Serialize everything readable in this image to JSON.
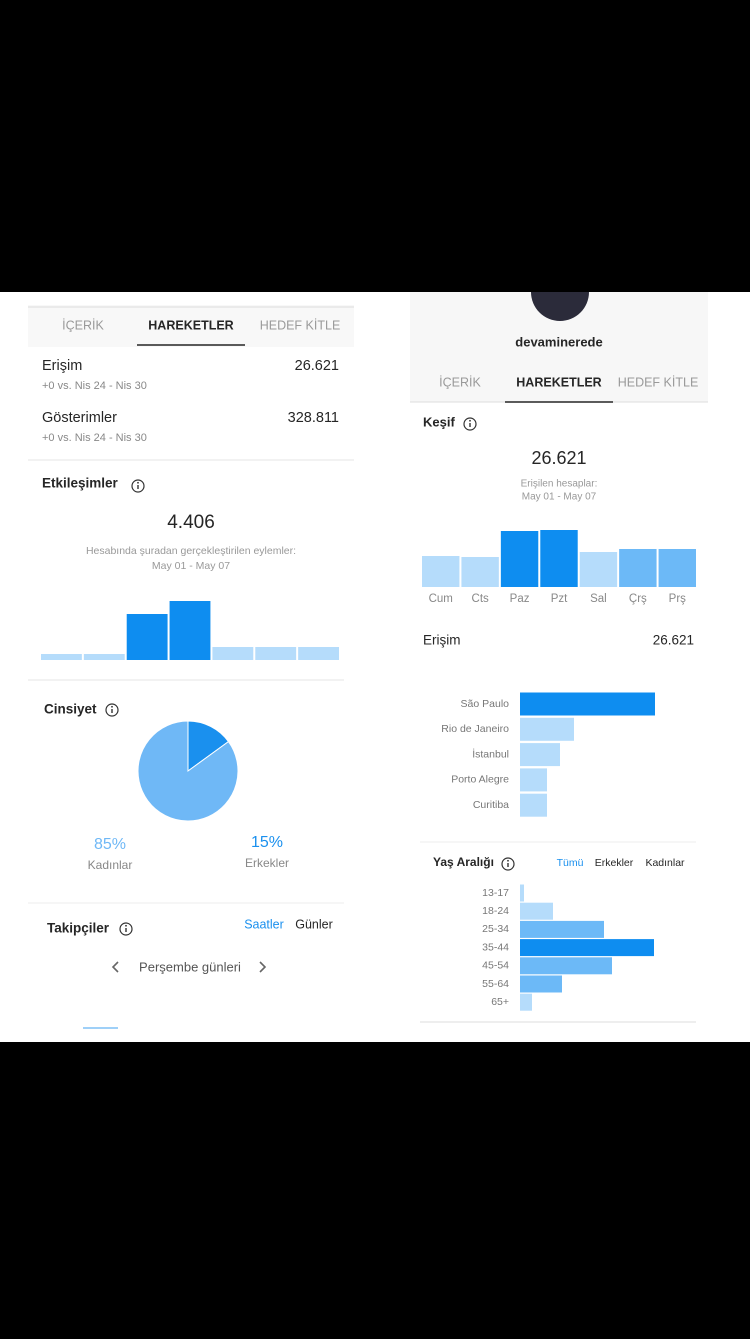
{
  "left": {
    "tabs": [
      "İÇERİK",
      "HAREKETLER",
      "HEDEF KİTLE"
    ],
    "active_tab": 1,
    "metrics": [
      {
        "label": "Erişim",
        "value": "26.621",
        "comparison": "+0 vs. Nis 24 - Nis 30"
      },
      {
        "label": "Gösterimler",
        "value": "328.811",
        "comparison": "+0 vs. Nis 24 - Nis 30"
      }
    ],
    "interactions": {
      "title": "Etkileşimler",
      "total": "4.406",
      "caption": "Hesabında şuradan gerçekleştirilen eylemler:",
      "period": "May 01 - May 07",
      "chart": {
        "type": "bar",
        "values": [
          6,
          6,
          46,
          59,
          13,
          13,
          13
        ],
        "colors": [
          "#b5dcfb",
          "#b5dcfb",
          "#0e8df0",
          "#0e8df0",
          "#b5dcfb",
          "#b5dcfb",
          "#b5dcfb"
        ],
        "ylim": [
          0,
          60
        ]
      }
    },
    "gender": {
      "title": "Cinsiyet",
      "chart": {
        "type": "pie",
        "categories": [
          "Kadınlar",
          "Erkekler"
        ],
        "values": [
          85,
          15
        ],
        "value_labels": [
          "85%",
          "15%"
        ],
        "colors": [
          "#6fb8f6",
          "#1a90ee"
        ]
      }
    },
    "followers": {
      "title": "Takipçiler",
      "toggles": [
        "Saatler",
        "Günler"
      ],
      "day": "Perşembe günleri"
    }
  },
  "right": {
    "username": "devaminerede",
    "tabs": [
      "İÇERİK",
      "HAREKETLER",
      "HEDEF KİTLE"
    ],
    "active_tab": 1,
    "discovery": {
      "title": "Keşif",
      "total": "26.621",
      "caption": "Erişilen hesaplar:",
      "period": "May 01 - May 07",
      "chart": {
        "type": "bar",
        "categories": [
          "Cum",
          "Cts",
          "Paz",
          "Pzt",
          "Sal",
          "Çrş",
          "Prş"
        ],
        "values": [
          31,
          30,
          56,
          57,
          35,
          38,
          38
        ],
        "colors": [
          "#b5dcfb",
          "#b5dcfb",
          "#0e8df0",
          "#0e8df0",
          "#b5dcfb",
          "#6cb9f7",
          "#6cb9f7"
        ],
        "ylim": [
          0,
          60
        ]
      }
    },
    "metric": {
      "label": "Erişim",
      "value": "26.621"
    },
    "cities": {
      "type": "hbar",
      "categories": [
        "São Paulo",
        "Rio de Janeiro",
        "İstanbul",
        "Porto Alegre",
        "Curitiba"
      ],
      "values": [
        135,
        54,
        40,
        27,
        27
      ],
      "colors": [
        "#0e8df0",
        "#b5dcfb",
        "#b5dcfb",
        "#b5dcfb",
        "#b5dcfb"
      ],
      "xlim": [
        0,
        140
      ]
    },
    "age": {
      "title": "Yaş Aralığı",
      "filters": [
        "Tümü",
        "Erkekler",
        "Kadınlar"
      ],
      "active_filter": 0,
      "chart": {
        "type": "hbar",
        "categories": [
          "13-17",
          "18-24",
          "25-34",
          "35-44",
          "45-54",
          "55-64",
          "65+"
        ],
        "values": [
          4,
          33,
          84,
          134,
          92,
          42,
          12
        ],
        "colors": [
          "#b5dcfb",
          "#b5dcfb",
          "#6cb9f7",
          "#0e8df0",
          "#6cb9f7",
          "#6cb9f7",
          "#b5dcfb"
        ],
        "xlim": [
          0,
          140
        ]
      }
    }
  }
}
